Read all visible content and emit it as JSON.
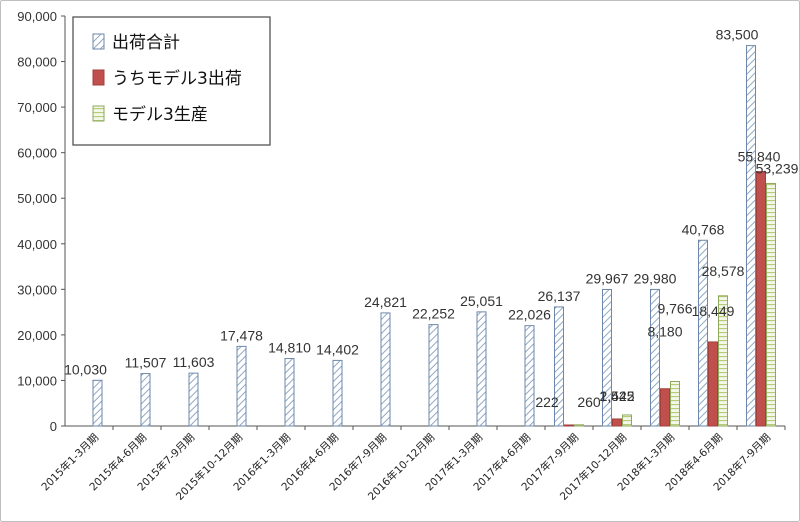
{
  "chart_data": {
    "type": "bar",
    "categories": [
      "2015年1-3月期",
      "2015年4-6月期",
      "2015年7-9月期",
      "2015年10-12月期",
      "2016年1-3月期",
      "2016年4-6月期",
      "2016年7-9月期",
      "2016年10-12月期",
      "2017年1-3月期",
      "2017年4-6月期",
      "2017年7-9月期",
      "2017年10-12月期",
      "2018年1-3月期",
      "2018年4-6月期",
      "2018年7-9月期"
    ],
    "series": [
      {
        "name": "出荷合計",
        "color": "#9db3cc",
        "pattern": "diagonal-hatch",
        "values": [
          10030,
          11507,
          11603,
          17478,
          14810,
          14402,
          24821,
          22252,
          25051,
          22026,
          26137,
          29967,
          29980,
          40768,
          83500
        ],
        "labels": [
          "10,030",
          "11,507",
          "11,603",
          "17,478",
          "14,810",
          "14,402",
          "24,821",
          "22,252",
          "25,051",
          "22,026",
          "26,137",
          "29,967",
          "29,980",
          "40,768",
          "83,500"
        ]
      },
      {
        "name": "うちモデル3出荷",
        "color": "#c0504d",
        "pattern": "solid",
        "values": [
          null,
          null,
          null,
          null,
          null,
          null,
          null,
          null,
          null,
          null,
          222,
          1542,
          8180,
          18449,
          55840
        ],
        "labels": [
          "",
          "",
          "",
          "",
          "",
          "",
          "",
          "",
          "",
          "",
          "222",
          "1,542",
          "8,180",
          "18,449",
          "55,840"
        ]
      },
      {
        "name": "モデル3生産",
        "color": "#c4d79b",
        "pattern": "horizontal-lines",
        "values": [
          null,
          null,
          null,
          null,
          null,
          null,
          null,
          null,
          null,
          null,
          260,
          2425,
          9766,
          28578,
          53239
        ],
        "labels": [
          "",
          "",
          "",
          "",
          "",
          "",
          "",
          "",
          "",
          "",
          "260",
          "2,425",
          "9,766",
          "28,578",
          "53,239"
        ]
      }
    ],
    "ylim": [
      0,
      90000
    ],
    "yticks": [
      "0",
      "10,000",
      "20,000",
      "30,000",
      "40,000",
      "50,000",
      "60,000",
      "70,000",
      "80,000",
      "90,000"
    ],
    "legend_position": "top-left",
    "grid": false,
    "title": "",
    "xlabel": "",
    "ylabel": ""
  }
}
